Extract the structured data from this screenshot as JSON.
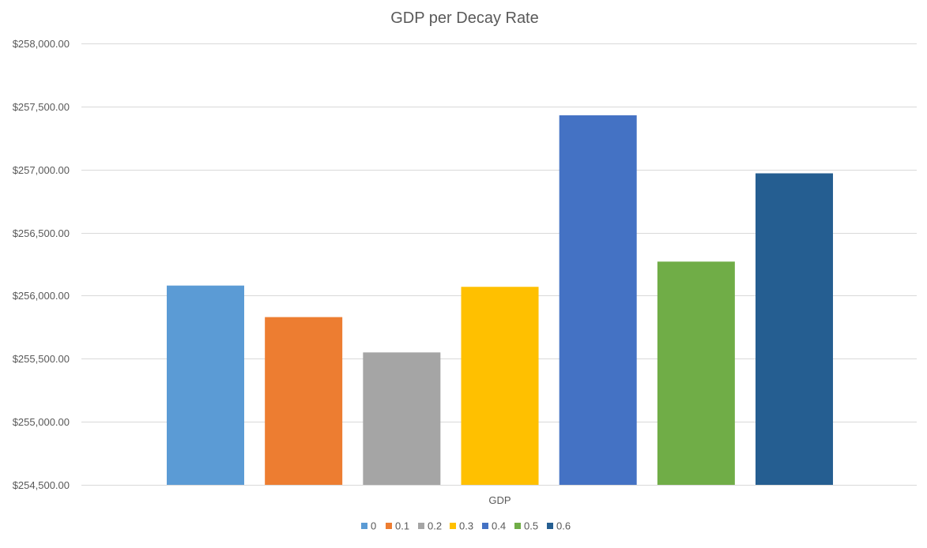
{
  "chart_data": {
    "type": "bar",
    "title": "GDP per Decay Rate",
    "categories": [
      "GDP"
    ],
    "series": [
      {
        "name": "0",
        "values": [
          256080
        ],
        "color": "#5B9BD5"
      },
      {
        "name": "0.1",
        "values": [
          255830
        ],
        "color": "#ED7D31"
      },
      {
        "name": "0.2",
        "values": [
          255550
        ],
        "color": "#A5A5A5"
      },
      {
        "name": "0.3",
        "values": [
          256070
        ],
        "color": "#FFC000"
      },
      {
        "name": "0.4",
        "values": [
          257430
        ],
        "color": "#4472C4"
      },
      {
        "name": "0.5",
        "values": [
          256270
        ],
        "color": "#70AD47"
      },
      {
        "name": "0.6",
        "values": [
          256970
        ],
        "color": "#255E91"
      }
    ],
    "ylim": [
      254500,
      258000
    ],
    "yticks": [
      {
        "value": 254500,
        "label": "$254,500.00"
      },
      {
        "value": 255000,
        "label": "$255,000.00"
      },
      {
        "value": 255500,
        "label": "$255,500.00"
      },
      {
        "value": 256000,
        "label": "$256,000.00"
      },
      {
        "value": 256500,
        "label": "$256,500.00"
      },
      {
        "value": 257000,
        "label": "$257,000.00"
      },
      {
        "value": 257500,
        "label": "$257,500.00"
      },
      {
        "value": 258000,
        "label": "$258,000.00"
      }
    ],
    "xlabel": "",
    "ylabel": "",
    "grid": true,
    "legend": "bottom"
  }
}
